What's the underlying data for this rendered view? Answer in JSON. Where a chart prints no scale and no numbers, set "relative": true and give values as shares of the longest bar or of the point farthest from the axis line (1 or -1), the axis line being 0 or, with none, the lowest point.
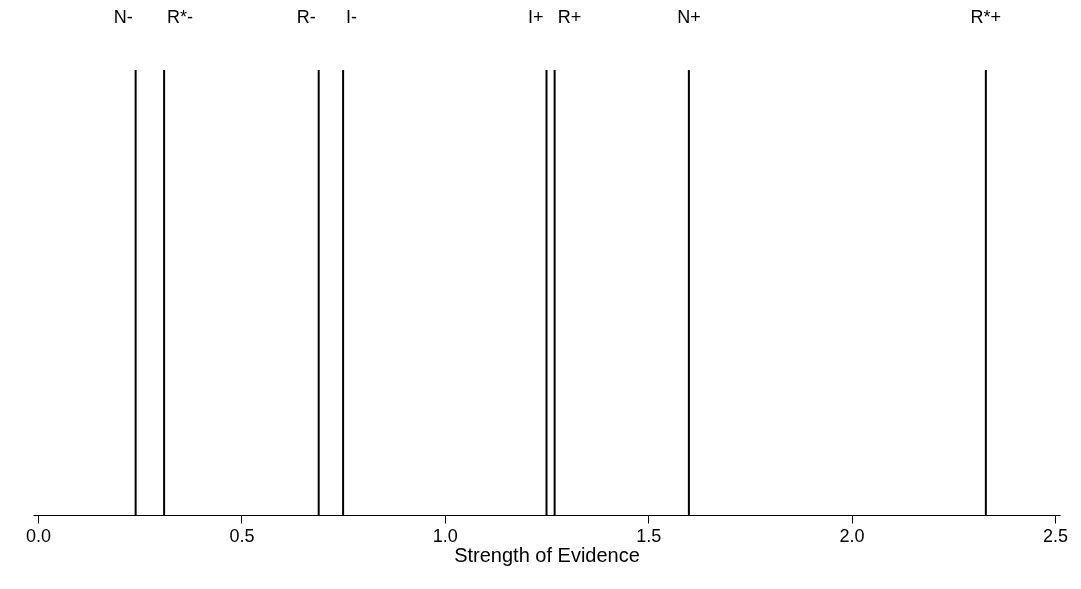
{
  "chart_data": {
    "type": "bar",
    "xlabel": "Strength of Evidence",
    "xlim": [
      0,
      2.5
    ],
    "xticks": [
      {
        "value": 0,
        "label": "0.0"
      },
      0.5,
      {
        "value": 1,
        "label": "1.0"
      },
      1.5,
      {
        "value": 2,
        "label": "2.0"
      },
      2.5
    ],
    "relative": true,
    "x": [
      0.24,
      0.31,
      0.69,
      0.75,
      1.25,
      1.27,
      1.6,
      2.33
    ],
    "values": [
      1,
      1,
      1,
      1,
      1,
      1,
      1,
      1
    ],
    "color": "#000000",
    "annotations": [
      {
        "text": "N-",
        "x": 0.24,
        "y": 1
      },
      {
        "text": "R*-",
        "x": 0.31,
        "y": 1
      },
      {
        "text": "R-",
        "x": 0.69,
        "y": 1
      },
      {
        "text": "I-",
        "x": 0.75,
        "y": 1
      },
      {
        "text": "I+",
        "x": 1.25,
        "y": 1
      },
      {
        "text": "R+",
        "x": 1.27,
        "y": 1
      },
      {
        "text": "N+",
        "x": 1.6,
        "y": 1
      },
      {
        "text": "R*+",
        "x": 2.33,
        "y": 1
      }
    ]
  }
}
